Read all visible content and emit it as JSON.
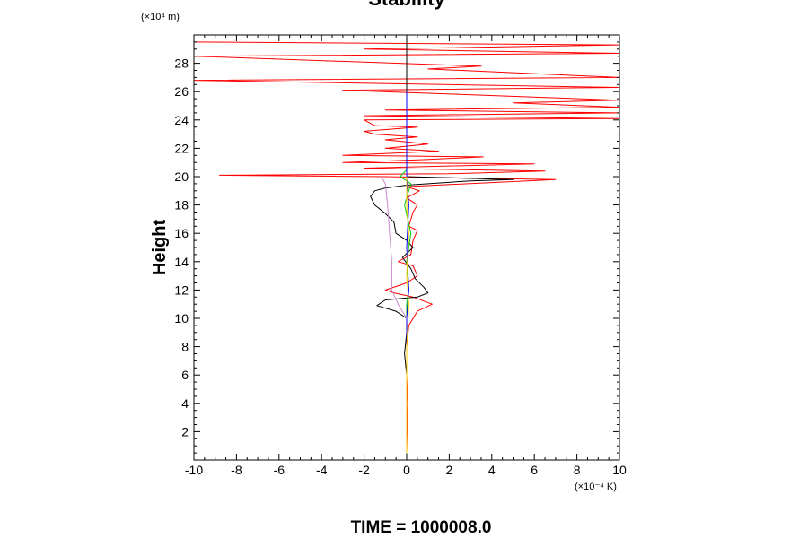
{
  "chart_data": {
    "type": "line",
    "title": "Stability",
    "ylabel": "Height",
    "y_unit_label": "(×10⁴ m)",
    "x_unit_label": "(×10⁻⁴ K)",
    "xlim": [
      -10,
      10
    ],
    "ylim": [
      0,
      30
    ],
    "x_ticks": [
      -10,
      -8,
      -6,
      -4,
      -2,
      0,
      2,
      4,
      6,
      8,
      10
    ],
    "y_ticks": [
      2,
      4,
      6,
      8,
      10,
      12,
      14,
      16,
      18,
      20,
      22,
      24,
      26,
      28
    ],
    "grid": false,
    "series": [
      {
        "color": "#ff0000",
        "points": [
          [
            0,
            0.5
          ],
          [
            0.05,
            4
          ],
          [
            0,
            6
          ],
          [
            0,
            8
          ],
          [
            0.1,
            9.5
          ],
          [
            0.5,
            10.5
          ],
          [
            1.2,
            11
          ],
          [
            0.3,
            11.5
          ],
          [
            -0.6,
            11.8
          ],
          [
            -1,
            12
          ],
          [
            0,
            12.5
          ],
          [
            0.5,
            13
          ],
          [
            0.3,
            13.7
          ],
          [
            -0.4,
            14
          ],
          [
            0.2,
            14.5
          ],
          [
            0.3,
            15.5
          ],
          [
            0.5,
            16.2
          ],
          [
            0.1,
            16.5
          ],
          [
            0.3,
            17.5
          ],
          [
            0.5,
            18
          ],
          [
            0,
            18.5
          ],
          [
            0.6,
            19
          ],
          [
            0,
            19.3
          ],
          [
            7,
            19.8
          ],
          [
            -1,
            20
          ],
          [
            -8.8,
            20.1
          ],
          [
            2,
            20.2
          ],
          [
            6.5,
            20.4
          ],
          [
            -2,
            20.6
          ],
          [
            6,
            20.9
          ],
          [
            -3,
            21
          ],
          [
            0.8,
            21.2
          ],
          [
            3.6,
            21.4
          ],
          [
            -3,
            21.5
          ],
          [
            1.5,
            21.8
          ],
          [
            -1,
            22
          ],
          [
            1,
            22.3
          ],
          [
            -1,
            22.6
          ],
          [
            0.5,
            22.8
          ],
          [
            -1.5,
            23
          ],
          [
            -2,
            23.2
          ],
          [
            0.5,
            23.5
          ],
          [
            -1.5,
            23.6
          ],
          [
            -2,
            24
          ],
          [
            10,
            24.1
          ],
          [
            -2,
            24.3
          ],
          [
            10,
            24.5
          ],
          [
            -1,
            24.7
          ],
          [
            10,
            24.9
          ],
          [
            5,
            25.2
          ],
          [
            10,
            25.4
          ],
          [
            -3,
            26.1
          ],
          [
            10,
            26.3
          ],
          [
            -10,
            26.8
          ],
          [
            10,
            27
          ],
          [
            1,
            27.6
          ],
          [
            3.5,
            27.8
          ],
          [
            -10,
            28.5
          ],
          [
            10,
            28.7
          ],
          [
            -2,
            29
          ],
          [
            10,
            29.3
          ],
          [
            -10,
            29.5
          ]
        ]
      },
      {
        "color": "#000000",
        "points": [
          [
            0,
            0.5
          ],
          [
            0,
            4
          ],
          [
            0,
            6
          ],
          [
            -0.1,
            7.5
          ],
          [
            0,
            9
          ],
          [
            0,
            10
          ],
          [
            -0.5,
            10.5
          ],
          [
            -1.4,
            10.9
          ],
          [
            -1,
            11.3
          ],
          [
            0.5,
            11.5
          ],
          [
            1,
            11.8
          ],
          [
            0.8,
            12.2
          ],
          [
            0.4,
            12.8
          ],
          [
            0.2,
            13.5
          ],
          [
            -0.2,
            14.3
          ],
          [
            0.3,
            15
          ],
          [
            0,
            15.5
          ],
          [
            -0.5,
            16
          ],
          [
            -0.6,
            16.8
          ],
          [
            -1,
            17.4
          ],
          [
            -1.5,
            18
          ],
          [
            -1.7,
            18.6
          ],
          [
            -1.5,
            19
          ],
          [
            -1,
            19.2
          ],
          [
            0,
            19.4
          ],
          [
            3,
            19.7
          ],
          [
            5,
            19.8
          ],
          [
            0,
            20
          ],
          [
            0,
            29.6
          ]
        ]
      },
      {
        "color": "#00cc00",
        "points": [
          [
            0,
            0.3
          ],
          [
            0,
            8
          ],
          [
            0,
            11
          ],
          [
            0.1,
            12
          ],
          [
            0,
            14
          ],
          [
            0.2,
            16
          ],
          [
            -0.1,
            18
          ],
          [
            0.2,
            19.5
          ],
          [
            -0.3,
            20
          ],
          [
            0,
            20.5
          ],
          [
            0,
            25
          ],
          [
            0,
            26
          ]
        ]
      },
      {
        "color": "#0000ff",
        "points": [
          [
            0,
            0.5
          ],
          [
            0,
            10
          ],
          [
            0.1,
            12
          ],
          [
            0,
            15
          ],
          [
            0.1,
            18
          ],
          [
            0,
            20
          ],
          [
            0,
            26
          ]
        ]
      },
      {
        "color": "#ffcc00",
        "points": [
          [
            0,
            0.5
          ],
          [
            0,
            8
          ],
          [
            0.1,
            11
          ],
          [
            0,
            13
          ],
          [
            0.1,
            16
          ],
          [
            0,
            18
          ],
          [
            0,
            20
          ]
        ]
      },
      {
        "color": "#cc88cc",
        "points": [
          [
            0,
            10
          ],
          [
            -0.4,
            11
          ],
          [
            -0.7,
            12
          ],
          [
            -0.7,
            14
          ],
          [
            -0.8,
            16
          ],
          [
            -0.9,
            18
          ],
          [
            -1,
            19.5
          ],
          [
            -1.2,
            20
          ]
        ]
      }
    ]
  },
  "footer": {
    "text": "TIME = 1000008.0"
  }
}
